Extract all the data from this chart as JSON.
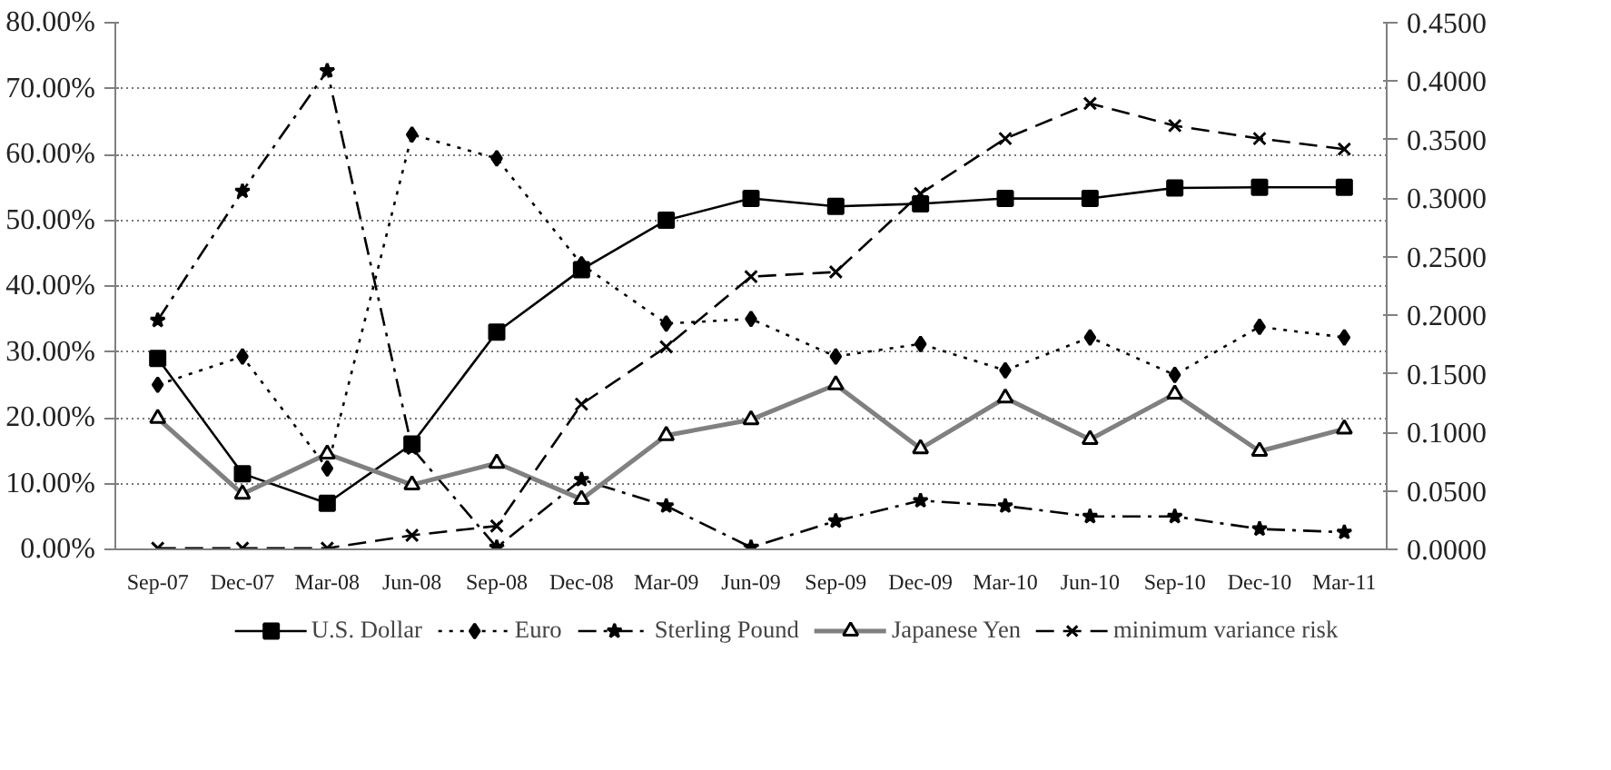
{
  "chart_data": {
    "type": "line",
    "categories": [
      "Sep-07",
      "Dec-07",
      "Mar-08",
      "Jun-08",
      "Sep-08",
      "Dec-08",
      "Mar-09",
      "Jun-09",
      "Sep-09",
      "Dec-09",
      "Mar-10",
      "Jun-10",
      "Sep-10",
      "Dec-10",
      "Mar-11"
    ],
    "series": [
      {
        "name": "U.S. Dollar",
        "color": "#000000",
        "marker": "square",
        "line_style": "solid",
        "values": [
          29.0,
          11.5,
          7.0,
          16.0,
          33.0,
          42.5,
          50.0,
          53.3,
          52.1,
          52.5,
          53.3,
          53.3,
          54.9,
          55.0,
          55.0
        ]
      },
      {
        "name": "Euro",
        "color": "#000000",
        "marker": "diamond",
        "line_style": "dotted",
        "values": [
          25.0,
          29.3,
          12.3,
          63.0,
          59.4,
          43.3,
          34.3,
          35.0,
          29.3,
          31.2,
          27.2,
          32.2,
          26.5,
          33.8,
          32.2
        ]
      },
      {
        "name": "Sterling Pound",
        "color": "#000000",
        "marker": "star",
        "line_style": "dashdot",
        "values": [
          34.8,
          54.4,
          72.7,
          15.4,
          0.3,
          10.6,
          6.6,
          0.3,
          4.3,
          7.4,
          6.6,
          5.0,
          5.0,
          3.1,
          2.6
        ]
      },
      {
        "name": "Japanese Yen",
        "color": "#808080",
        "marker": "triangle",
        "line_style": "solid",
        "values": [
          19.9,
          8.4,
          14.5,
          9.8,
          13.1,
          7.6,
          17.3,
          19.7,
          25.0,
          15.3,
          23.0,
          16.7,
          23.6,
          14.9,
          18.3
        ]
      },
      {
        "name": "minimum variance risk",
        "color": "#000000",
        "marker": "cross",
        "line_style": "dashed",
        "axis": "y2",
        "values": [
          0.001,
          0.001,
          0.001,
          0.012,
          0.02,
          0.124,
          0.173,
          0.233,
          0.237,
          0.304,
          0.351,
          0.381,
          0.362,
          0.351,
          0.342
        ]
      }
    ],
    "ylim": [
      0,
      80
    ],
    "yticks": [
      {
        "value": 0,
        "label": "0.00%"
      },
      {
        "value": 10,
        "label": "10.00%"
      },
      {
        "value": 20,
        "label": "20.00%"
      },
      {
        "value": 30,
        "label": "30.00%"
      },
      {
        "value": 40,
        "label": "40.00%"
      },
      {
        "value": 50,
        "label": "50.00%"
      },
      {
        "value": 60,
        "label": "60.00%"
      },
      {
        "value": 70,
        "label": "70.00%"
      },
      {
        "value": 80,
        "label": "80.00%"
      }
    ],
    "y2lim": [
      0,
      0.45
    ],
    "y2ticks": [
      {
        "value": 0,
        "label": "0.0000"
      },
      {
        "value": 0.05,
        "label": "0.0500"
      },
      {
        "value": 0.1,
        "label": "0.1000"
      },
      {
        "value": 0.15,
        "label": "0.1500"
      },
      {
        "value": 0.2,
        "label": "0.2000"
      },
      {
        "value": 0.25,
        "label": "0.2500"
      },
      {
        "value": 0.3,
        "label": "0.3000"
      },
      {
        "value": 0.35,
        "label": "0.3500"
      },
      {
        "value": 0.4,
        "label": "0.4000"
      },
      {
        "value": 0.45,
        "label": "0.4500"
      }
    ],
    "grid": "y",
    "legend": "bottom"
  }
}
